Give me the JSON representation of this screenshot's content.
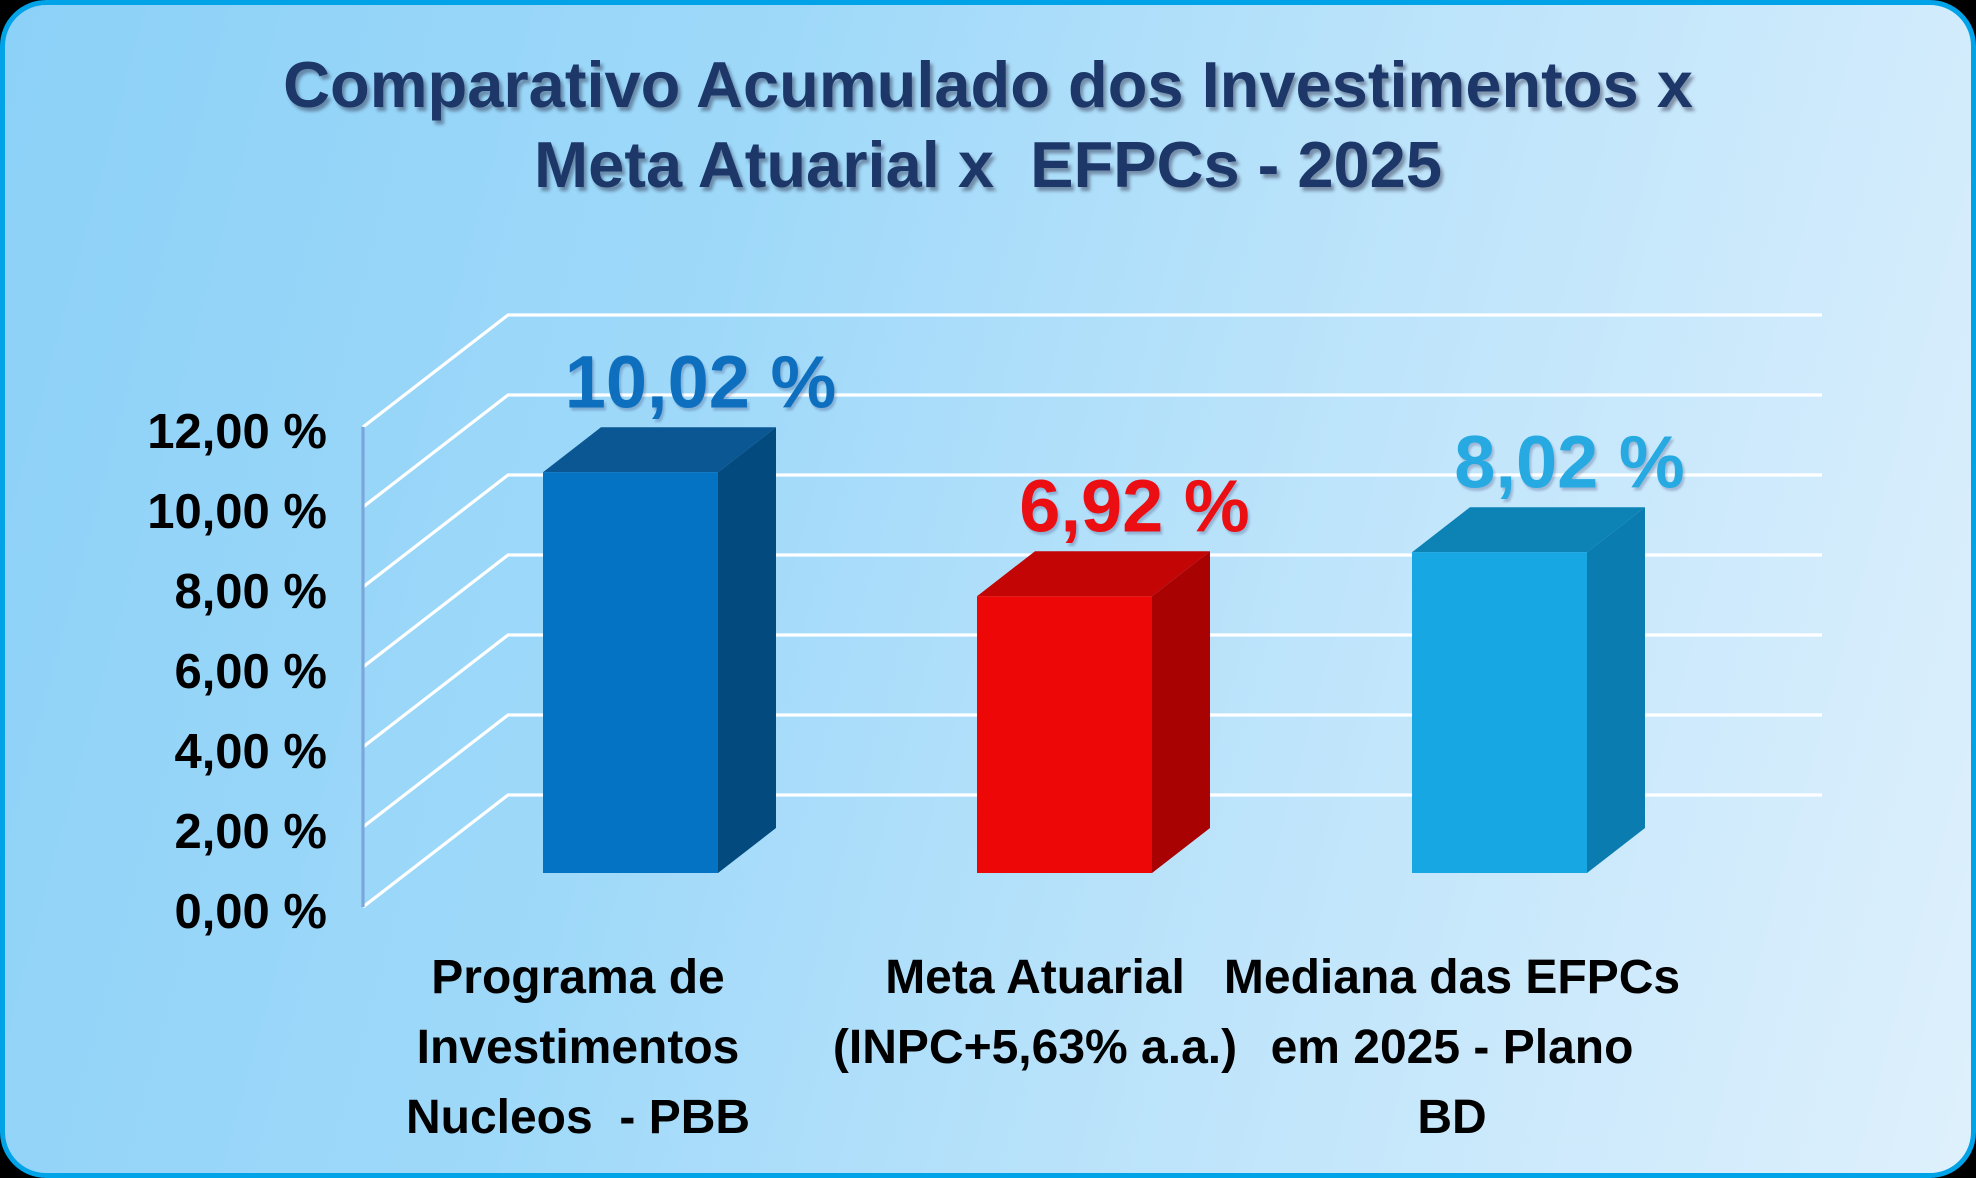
{
  "title": {
    "line1": "Comparativo Acumulado dos Investimentos x",
    "line2": "Meta Atuarial x  EFPCs - 2025",
    "color": "#1C3768"
  },
  "canvas": {
    "background_gradient_start": "#8CD1F8",
    "background_gradient_end": "#DEF0FC",
    "border_color": "#00A2E8"
  },
  "chart_data": {
    "type": "bar",
    "style": "3d-column",
    "title": "Comparativo Acumulado dos Investimentos x Meta Atuarial x  EFPCs - 2025",
    "categories": [
      "Programa de Investimentos Nucleos  - PBB",
      "Meta Atuarial (INPC+5,63% a.a.)",
      "Mediana das EFPCs em 2025 - Plano BD"
    ],
    "category_label_lines": [
      [
        "Programa de",
        "Investimentos",
        "Nucleos  - PBB"
      ],
      [
        "Meta Atuarial",
        "(INPC+5,63% a.a.)"
      ],
      [
        "Mediana das EFPCs",
        "em 2025 - Plano",
        "BD"
      ]
    ],
    "values": [
      10.02,
      6.92,
      8.02
    ],
    "value_labels": [
      "10,02 %",
      "6,92 %",
      "8,02 %"
    ],
    "series_colors": [
      {
        "front": "#0573C4",
        "top": "#0A5793",
        "side": "#034B7E",
        "label": "#0F6FBF"
      },
      {
        "front": "#EE0707",
        "top": "#C30505",
        "side": "#A80202",
        "label": "#EB0F14"
      },
      {
        "front": "#17A7E3",
        "top": "#0C82B5",
        "side": "#0B7CB0",
        "label": "#27A9E1"
      }
    ],
    "y_axis": {
      "tick_labels": [
        "0,00 %",
        "2,00 %",
        "4,00 %",
        "6,00 %",
        "8,00 %",
        "10,00 %",
        "12,00 %"
      ],
      "tick_values": [
        0,
        2,
        4,
        6,
        8,
        10,
        12
      ],
      "range": [
        0,
        12
      ],
      "grid": true,
      "grid_color": "#FFFFFF",
      "axis_color": "#7CA6DB",
      "tick_label_color": "#000000"
    },
    "category_label_color": "#000000",
    "legend": false
  }
}
